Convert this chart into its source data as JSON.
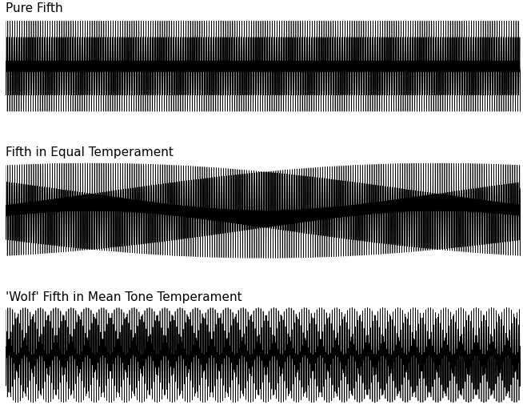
{
  "title1": "Pure Fifth",
  "title2": "Fifth in Equal Temperament",
  "title3": "'Wolf' Fifth in Mean Tone Temperament",
  "background_color": "#ffffff",
  "line_color": "#000000",
  "line_width": 0.5,
  "duration": 1.0,
  "sample_rate": 44100,
  "f1": 440,
  "pure_fifth_ratio": 1.5,
  "equal_temp_ratio": 1.4983070768766815,
  "wolf_fifth_ratio": 1.4624,
  "title_fontsize": 11,
  "fig_width": 6.54,
  "fig_height": 5.11,
  "ylim_clip": 1.05
}
